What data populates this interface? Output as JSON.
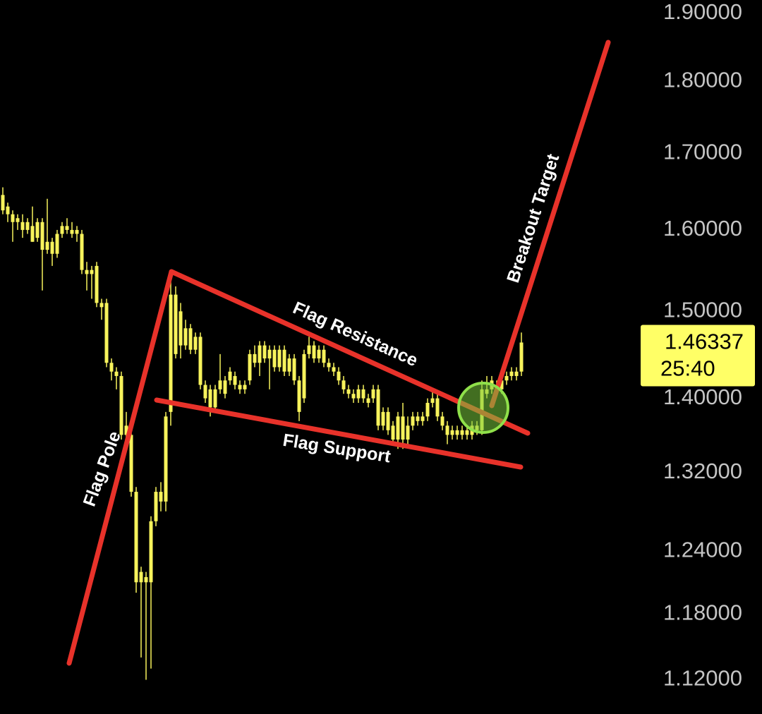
{
  "chart_data": {
    "type": "candlestick",
    "yscale": "log",
    "ylim": [
      1.09,
      1.92
    ],
    "yticks": [
      {
        "value": 1.9,
        "label": "1.90000"
      },
      {
        "value": 1.8,
        "label": "1.80000"
      },
      {
        "value": 1.7,
        "label": "1.70000"
      },
      {
        "value": 1.6,
        "label": "1.60000"
      },
      {
        "value": 1.5,
        "label": "1.50000"
      },
      {
        "value": 1.4,
        "label": "1.40000"
      },
      {
        "value": 1.32,
        "label": "1.32000"
      },
      {
        "value": 1.24,
        "label": "1.24000"
      },
      {
        "value": 1.18,
        "label": "1.18000"
      },
      {
        "value": 1.12,
        "label": "1.12000"
      }
    ],
    "color": "#f7f35c",
    "series": {
      "open": [
        1.645,
        1.63,
        1.62,
        1.615,
        1.61,
        1.61,
        1.605,
        1.61,
        1.61,
        1.575,
        1.585,
        1.57,
        1.595,
        1.605,
        1.6,
        1.595,
        1.595,
        1.55,
        1.55,
        1.555,
        1.51,
        1.51,
        1.44,
        1.43,
        1.425,
        1.36,
        1.36,
        1.3,
        1.22,
        1.215,
        1.21,
        1.27,
        1.29,
        1.29,
        1.385,
        1.52,
        1.5,
        1.46,
        1.48,
        1.455,
        1.47,
        1.415,
        1.41,
        1.39,
        1.41,
        1.42,
        1.42,
        1.425,
        1.415,
        1.41,
        1.42,
        1.45,
        1.44,
        1.46,
        1.445,
        1.455,
        1.435,
        1.455,
        1.43,
        1.445,
        1.42,
        1.4,
        1.45,
        1.46,
        1.445,
        1.455,
        1.44,
        1.435,
        1.43,
        1.42,
        1.41,
        1.405,
        1.4,
        1.41,
        1.4,
        1.4,
        1.41,
        1.37,
        1.385,
        1.37,
        1.355,
        1.38,
        1.355,
        1.37,
        1.38,
        1.375,
        1.38,
        1.395,
        1.4,
        1.38,
        1.37,
        1.36,
        1.365,
        1.36,
        1.365,
        1.36,
        1.37,
        1.365,
        1.405,
        1.41,
        1.415,
        1.41,
        1.42,
        1.425,
        1.43,
        1.43
      ],
      "high": [
        1.655,
        1.635,
        1.625,
        1.62,
        1.62,
        1.615,
        1.63,
        1.615,
        1.615,
        1.64,
        1.59,
        1.6,
        1.61,
        1.615,
        1.61,
        1.605,
        1.6,
        1.56,
        1.555,
        1.56,
        1.515,
        1.515,
        1.445,
        1.435,
        1.43,
        1.385,
        1.37,
        1.305,
        1.225,
        1.22,
        1.275,
        1.305,
        1.31,
        1.385,
        1.545,
        1.53,
        1.51,
        1.49,
        1.485,
        1.475,
        1.475,
        1.42,
        1.415,
        1.415,
        1.45,
        1.425,
        1.435,
        1.43,
        1.42,
        1.42,
        1.455,
        1.46,
        1.465,
        1.465,
        1.46,
        1.46,
        1.46,
        1.46,
        1.45,
        1.45,
        1.425,
        1.455,
        1.47,
        1.465,
        1.46,
        1.46,
        1.445,
        1.44,
        1.435,
        1.425,
        1.415,
        1.41,
        1.415,
        1.415,
        1.405,
        1.415,
        1.415,
        1.39,
        1.39,
        1.375,
        1.385,
        1.395,
        1.38,
        1.385,
        1.385,
        1.385,
        1.4,
        1.41,
        1.405,
        1.385,
        1.375,
        1.37,
        1.37,
        1.37,
        1.37,
        1.375,
        1.375,
        1.42,
        1.425,
        1.425,
        1.42,
        1.425,
        1.43,
        1.435,
        1.435,
        1.475
      ],
      "low": [
        1.62,
        1.61,
        1.585,
        1.6,
        1.59,
        1.595,
        1.585,
        1.585,
        1.525,
        1.57,
        1.555,
        1.565,
        1.59,
        1.595,
        1.59,
        1.585,
        1.545,
        1.525,
        1.515,
        1.505,
        1.49,
        1.435,
        1.42,
        1.41,
        1.355,
        1.35,
        1.295,
        1.2,
        1.14,
        1.12,
        1.13,
        1.265,
        1.28,
        1.28,
        1.37,
        1.445,
        1.445,
        1.455,
        1.45,
        1.45,
        1.41,
        1.395,
        1.38,
        1.385,
        1.405,
        1.4,
        1.415,
        1.41,
        1.405,
        1.405,
        1.415,
        1.435,
        1.425,
        1.44,
        1.41,
        1.43,
        1.43,
        1.425,
        1.425,
        1.415,
        1.375,
        1.395,
        1.445,
        1.44,
        1.44,
        1.435,
        1.43,
        1.425,
        1.415,
        1.405,
        1.4,
        1.395,
        1.395,
        1.395,
        1.39,
        1.395,
        1.365,
        1.365,
        1.36,
        1.35,
        1.345,
        1.345,
        1.35,
        1.365,
        1.37,
        1.37,
        1.375,
        1.39,
        1.375,
        1.365,
        1.35,
        1.355,
        1.355,
        1.355,
        1.355,
        1.355,
        1.36,
        1.36,
        1.4,
        1.405,
        1.405,
        1.405,
        1.415,
        1.42,
        1.42,
        1.425
      ],
      "close": [
        1.625,
        1.62,
        1.61,
        1.61,
        1.6,
        1.6,
        1.585,
        1.59,
        1.575,
        1.585,
        1.57,
        1.595,
        1.605,
        1.6,
        1.595,
        1.6,
        1.55,
        1.545,
        1.545,
        1.51,
        1.505,
        1.44,
        1.43,
        1.425,
        1.36,
        1.37,
        1.3,
        1.21,
        1.21,
        1.21,
        1.27,
        1.3,
        1.3,
        1.38,
        1.52,
        1.45,
        1.46,
        1.48,
        1.455,
        1.47,
        1.415,
        1.4,
        1.39,
        1.41,
        1.42,
        1.405,
        1.43,
        1.415,
        1.41,
        1.415,
        1.45,
        1.44,
        1.46,
        1.445,
        1.455,
        1.435,
        1.455,
        1.43,
        1.445,
        1.42,
        1.385,
        1.45,
        1.46,
        1.445,
        1.455,
        1.44,
        1.435,
        1.43,
        1.42,
        1.41,
        1.405,
        1.4,
        1.41,
        1.4,
        1.395,
        1.41,
        1.37,
        1.385,
        1.365,
        1.355,
        1.38,
        1.355,
        1.37,
        1.38,
        1.375,
        1.38,
        1.395,
        1.4,
        1.38,
        1.37,
        1.36,
        1.365,
        1.36,
        1.365,
        1.36,
        1.37,
        1.365,
        1.41,
        1.41,
        1.42,
        1.41,
        1.42,
        1.425,
        1.43,
        1.425,
        1.46337
      ]
    },
    "annotations": [
      "Flag Pole",
      "Flag Resistance",
      "Flag Support",
      "Breakout Target"
    ],
    "last_price": 1.46337,
    "countdown": "25:40"
  }
}
